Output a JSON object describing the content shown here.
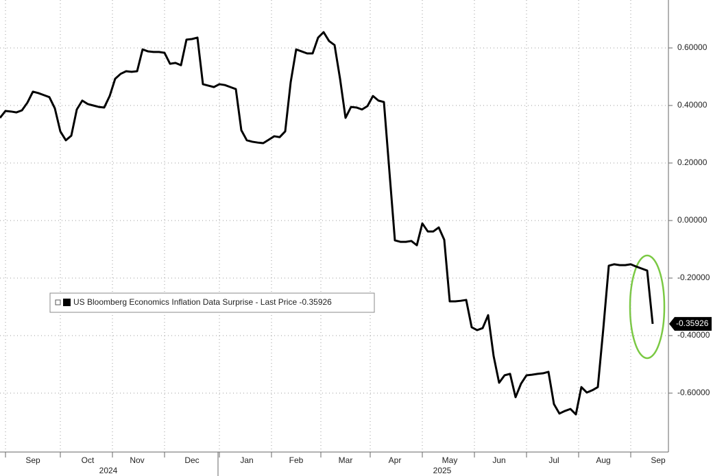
{
  "chart_data": {
    "type": "line",
    "categories": [
      null,
      null,
      null,
      null,
      null,
      null,
      "Sep",
      null,
      null,
      null,
      null,
      null,
      null,
      null,
      null,
      null,
      "Oct",
      null,
      null,
      null,
      null,
      null,
      null,
      null,
      null,
      "Nov",
      null,
      null,
      null,
      null,
      null,
      null,
      null,
      null,
      null,
      "Dec",
      null,
      null,
      null,
      null,
      null,
      null,
      null,
      null,
      null,
      "Jan",
      null,
      null,
      null,
      null,
      null,
      null,
      null,
      null,
      "Feb",
      null,
      null,
      null,
      null,
      null,
      null,
      null,
      null,
      "Mar",
      null,
      null,
      null,
      null,
      null,
      null,
      null,
      null,
      "Apr",
      null,
      null,
      null,
      null,
      null,
      null,
      null,
      null,
      null,
      "May",
      null,
      null,
      null,
      null,
      null,
      null,
      null,
      null,
      "Jun",
      null,
      null,
      null,
      null,
      null,
      null,
      null,
      null,
      null,
      "Jul",
      null,
      null,
      null,
      null,
      null,
      null,
      null,
      null,
      "Aug",
      null,
      null,
      null,
      null,
      null,
      null,
      null,
      null,
      null,
      "Sep"
    ],
    "years": [
      "2024",
      "2025"
    ],
    "series": [
      {
        "name": "US Bloomberg Economics Inflation Data Surprise - Last Price -0.35926",
        "color": "#000000",
        "values": [
          0.357,
          0.381,
          0.379,
          0.376,
          0.383,
          0.41,
          0.448,
          0.443,
          0.436,
          0.429,
          0.39,
          0.31,
          0.279,
          0.295,
          0.386,
          0.417,
          0.405,
          0.4,
          0.395,
          0.393,
          0.433,
          0.493,
          0.51,
          0.519,
          0.517,
          0.519,
          0.595,
          0.588,
          0.586,
          0.586,
          0.583,
          0.545,
          0.548,
          0.54,
          0.629,
          0.631,
          0.636,
          0.474,
          0.469,
          0.464,
          0.474,
          0.471,
          0.464,
          0.457,
          0.314,
          0.279,
          0.274,
          0.271,
          0.269,
          0.281,
          0.293,
          0.29,
          0.31,
          0.481,
          0.595,
          0.588,
          0.581,
          0.581,
          0.636,
          0.655,
          0.624,
          0.61,
          0.493,
          0.357,
          0.395,
          0.393,
          0.386,
          0.398,
          0.433,
          0.417,
          0.412,
          0.171,
          -0.069,
          -0.074,
          -0.074,
          -0.071,
          -0.086,
          -0.01,
          -0.038,
          -0.038,
          -0.024,
          -0.067,
          -0.281,
          -0.281,
          -0.279,
          -0.276,
          -0.371,
          -0.381,
          -0.374,
          -0.329,
          -0.471,
          -0.564,
          -0.538,
          -0.533,
          -0.614,
          -0.567,
          -0.538,
          -0.536,
          -0.533,
          -0.531,
          -0.526,
          -0.638,
          -0.671,
          -0.662,
          -0.655,
          -0.674,
          -0.579,
          -0.598,
          -0.59,
          -0.579,
          -0.376,
          -0.157,
          -0.152,
          -0.155,
          -0.155,
          -0.152,
          -0.16,
          -0.167,
          -0.174,
          -0.35926,
          null
        ]
      }
    ],
    "last_price": {
      "value": -0.35926,
      "label": "-0.35926"
    },
    "ylim": [
      -0.8,
      0.7667
    ],
    "yticks": [
      {
        "value": 0.6,
        "label": "0.60000"
      },
      {
        "value": 0.4,
        "label": "0.40000"
      },
      {
        "value": 0.2,
        "label": "0.20000"
      },
      {
        "value": 0,
        "label": "0.00000"
      },
      {
        "value": -0.2,
        "label": "-0.20000"
      },
      {
        "value": -0.4,
        "label": "-0.40000"
      },
      {
        "value": -0.6,
        "label": "-0.60000"
      }
    ],
    "grid": true
  }
}
